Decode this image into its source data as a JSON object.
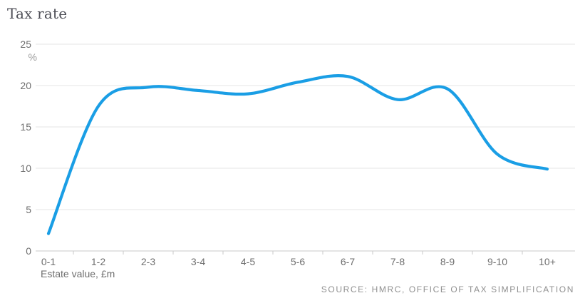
{
  "header": {
    "title": "Tax rate"
  },
  "chart_data": {
    "type": "line",
    "title": "Tax rate",
    "categories": [
      "0-1",
      "1-2",
      "2-3",
      "3-4",
      "4-5",
      "5-6",
      "6-7",
      "7-8",
      "8-9",
      "9-10",
      "10+"
    ],
    "values": [
      2.1,
      17.5,
      19.8,
      19.4,
      19.0,
      20.4,
      21.1,
      18.3,
      19.6,
      11.7,
      9.9
    ],
    "xlabel": "Estate value, £m",
    "ylabel": "%",
    "ylim": [
      0,
      25
    ],
    "yticks": [
      0,
      5,
      10,
      15,
      20,
      25
    ],
    "grid": true,
    "legend_position": "none",
    "line_color": "#1a9ee5"
  },
  "footer": {
    "source": "SOURCE: HMRC, OFFICE OF TAX SIMPLIFICATION"
  },
  "colors": {
    "line": "#1a9ee5",
    "title_text": "#4d4e56",
    "axis_text": "#6e6e6e",
    "unit_text": "#9b9b9b",
    "gridline": "#e4e4e4",
    "axis_line": "#c9c9c9",
    "source_text": "#8f8f8f"
  }
}
